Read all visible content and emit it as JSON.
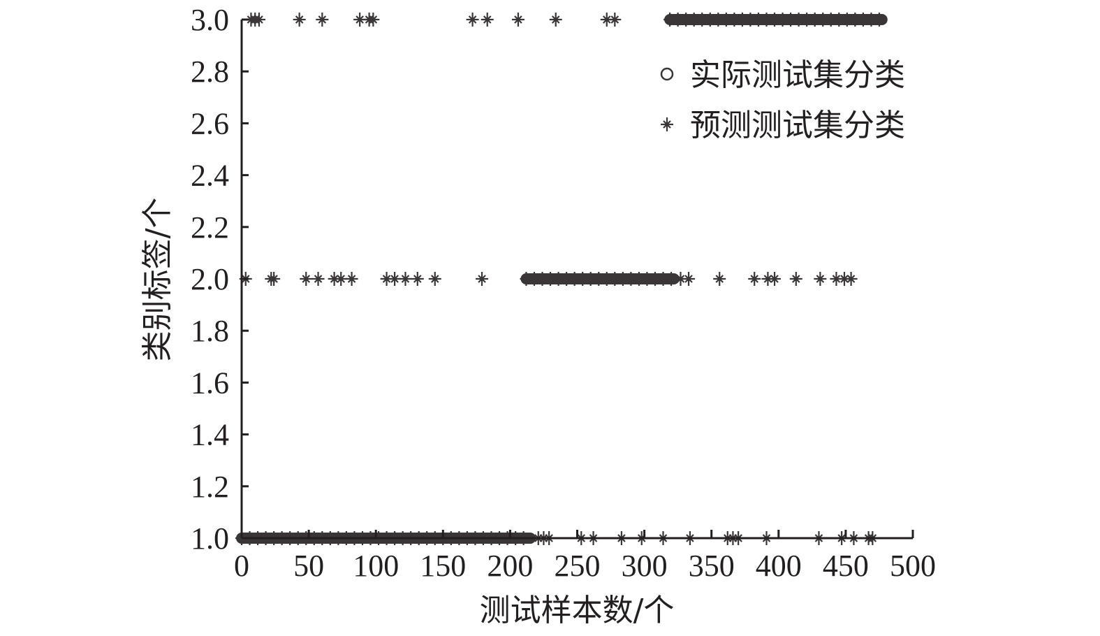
{
  "chart_data": {
    "type": "scatter",
    "title": "",
    "xlabel": "测试样本数/个",
    "ylabel": "类别标签/个",
    "xlim": [
      0,
      500
    ],
    "ylim": [
      1.0,
      3.0
    ],
    "xticks": [
      "0",
      "50",
      "100",
      "150",
      "200",
      "250",
      "300",
      "350",
      "400",
      "450",
      "500"
    ],
    "yticks": [
      "1.0",
      "1.2",
      "1.4",
      "1.6",
      "1.8",
      "2.0",
      "2.2",
      "2.4",
      "2.6",
      "2.8",
      "3.0"
    ],
    "grid": false,
    "legend_position": "top-right",
    "color": "#3a3536",
    "series": [
      {
        "name": "实际测试集分类",
        "marker": "circle",
        "ranges": [
          {
            "class": 1,
            "from": 0,
            "to": 215
          },
          {
            "class": 2,
            "from": 212,
            "to": 322
          },
          {
            "class": 3,
            "from": 319,
            "to": 477
          }
        ]
      },
      {
        "name": "预测测试集分类",
        "marker": "star",
        "points": [
          {
            "x": 7,
            "y": 3
          },
          {
            "x": 10,
            "y": 3
          },
          {
            "x": 13,
            "y": 3
          },
          {
            "x": 43,
            "y": 3
          },
          {
            "x": 60,
            "y": 3
          },
          {
            "x": 88,
            "y": 3
          },
          {
            "x": 95,
            "y": 3
          },
          {
            "x": 98,
            "y": 3
          },
          {
            "x": 172,
            "y": 3
          },
          {
            "x": 183,
            "y": 3
          },
          {
            "x": 206,
            "y": 3
          },
          {
            "x": 234,
            "y": 3
          },
          {
            "x": 272,
            "y": 3
          },
          {
            "x": 278,
            "y": 3
          },
          {
            "x": 3,
            "y": 2
          },
          {
            "x": 22,
            "y": 2
          },
          {
            "x": 24,
            "y": 2
          },
          {
            "x": 48,
            "y": 2
          },
          {
            "x": 57,
            "y": 2
          },
          {
            "x": 69,
            "y": 2
          },
          {
            "x": 74,
            "y": 2
          },
          {
            "x": 82,
            "y": 2
          },
          {
            "x": 108,
            "y": 2
          },
          {
            "x": 114,
            "y": 2
          },
          {
            "x": 122,
            "y": 2
          },
          {
            "x": 131,
            "y": 2
          },
          {
            "x": 144,
            "y": 2
          },
          {
            "x": 179,
            "y": 2
          },
          {
            "x": 327,
            "y": 2
          },
          {
            "x": 333,
            "y": 2
          },
          {
            "x": 356,
            "y": 2
          },
          {
            "x": 382,
            "y": 2
          },
          {
            "x": 392,
            "y": 2
          },
          {
            "x": 397,
            "y": 2
          },
          {
            "x": 413,
            "y": 2
          },
          {
            "x": 431,
            "y": 2
          },
          {
            "x": 443,
            "y": 2
          },
          {
            "x": 449,
            "y": 2
          },
          {
            "x": 454,
            "y": 2
          },
          {
            "x": 221,
            "y": 1
          },
          {
            "x": 225,
            "y": 1
          },
          {
            "x": 229,
            "y": 1
          },
          {
            "x": 253,
            "y": 1
          },
          {
            "x": 262,
            "y": 1
          },
          {
            "x": 283,
            "y": 1
          },
          {
            "x": 298,
            "y": 1
          },
          {
            "x": 314,
            "y": 1
          },
          {
            "x": 334,
            "y": 1
          },
          {
            "x": 362,
            "y": 1
          },
          {
            "x": 366,
            "y": 1
          },
          {
            "x": 370,
            "y": 1
          },
          {
            "x": 391,
            "y": 1
          },
          {
            "x": 430,
            "y": 1
          },
          {
            "x": 447,
            "y": 1
          },
          {
            "x": 456,
            "y": 1
          },
          {
            "x": 467,
            "y": 1
          },
          {
            "x": 470,
            "y": 1
          }
        ]
      }
    ]
  }
}
